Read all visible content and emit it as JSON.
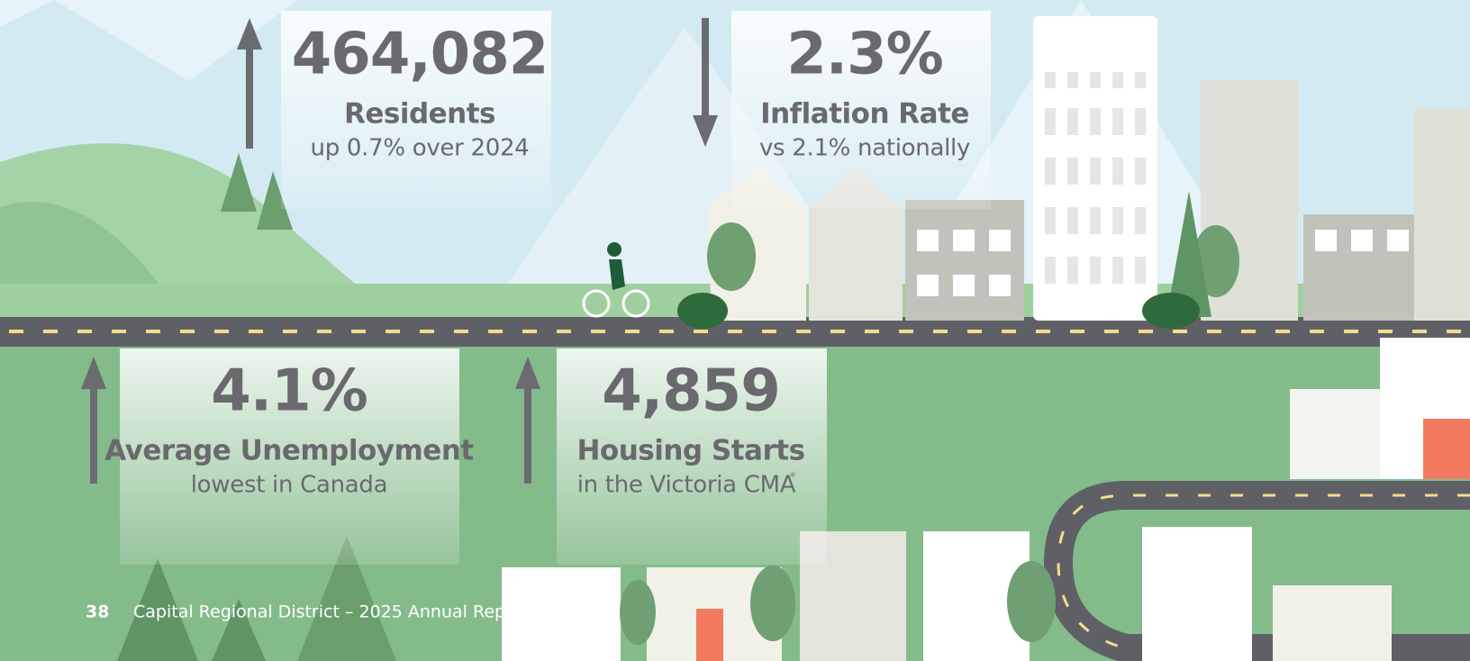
{
  "stats": [
    {
      "value": "464,082",
      "label": "Residents",
      "detail": "up 0.7% over 2024"
    },
    {
      "value": "2.3%",
      "label": "Inflation Rate",
      "detail": "vs 2.1% nationally"
    },
    {
      "value": "4.1%",
      "label": "Average Unemployment",
      "detail": "lowest in Canada"
    },
    {
      "value": "4,859",
      "label": "Housing Starts",
      "detail": "in the Victoria CMA",
      "note_mark": "*"
    }
  ],
  "footer": {
    "page_number": "38",
    "report_title": "Capital Regional District – 2025 Annual Report"
  }
}
